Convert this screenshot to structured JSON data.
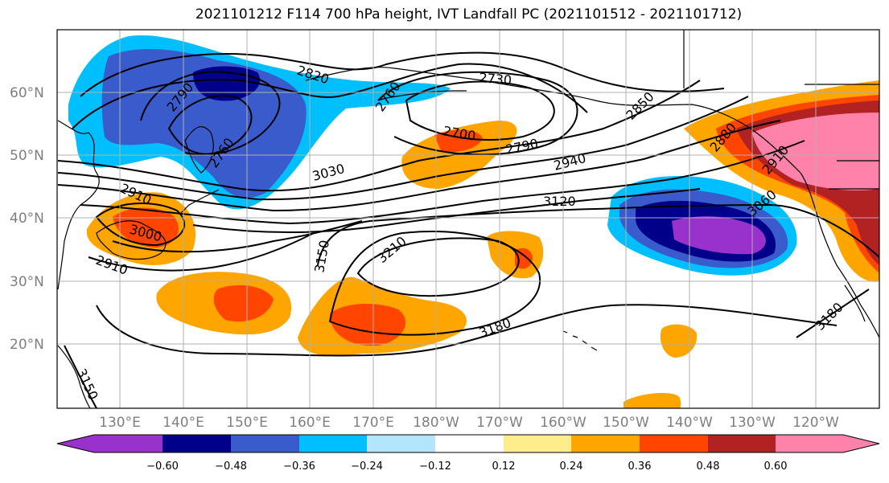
{
  "title": "2021101212 F114 700 hPa height, IVT Landfall PC (2021101512 - 2021101712)",
  "lat_labels": [
    "60°N",
    "50°N",
    "40°N",
    "30°N",
    "20°N"
  ],
  "lon_labels": [
    "130°E",
    "140°E",
    "150°E",
    "160°E",
    "170°E",
    "180°W",
    "170°W",
    "160°W",
    "150°W",
    "140°W",
    "130°W",
    "120°W"
  ],
  "contour_labels": [
    "2820",
    "2790",
    "2760",
    "2730",
    "2760",
    "2700",
    "2790",
    "2850",
    "2880",
    "2910",
    "2940",
    "3030",
    "3120",
    "3060",
    "2910",
    "3000",
    "2910",
    "3150",
    "3210",
    "3180",
    "3180",
    "3150"
  ],
  "colorbar": {
    "tick_labels": [
      "−0.60",
      "−0.48",
      "−0.36",
      "−0.24",
      "−0.12",
      "0.12",
      "0.24",
      "0.36",
      "0.48",
      "0.60"
    ],
    "colors": [
      "#9932cc",
      "#00008b",
      "#3a5bcc",
      "#00bfff",
      "#b3e5fc",
      "#ffffff",
      "#ffec8b",
      "#ffa500",
      "#ff4500",
      "#b22222",
      "#ff82ab"
    ]
  }
}
